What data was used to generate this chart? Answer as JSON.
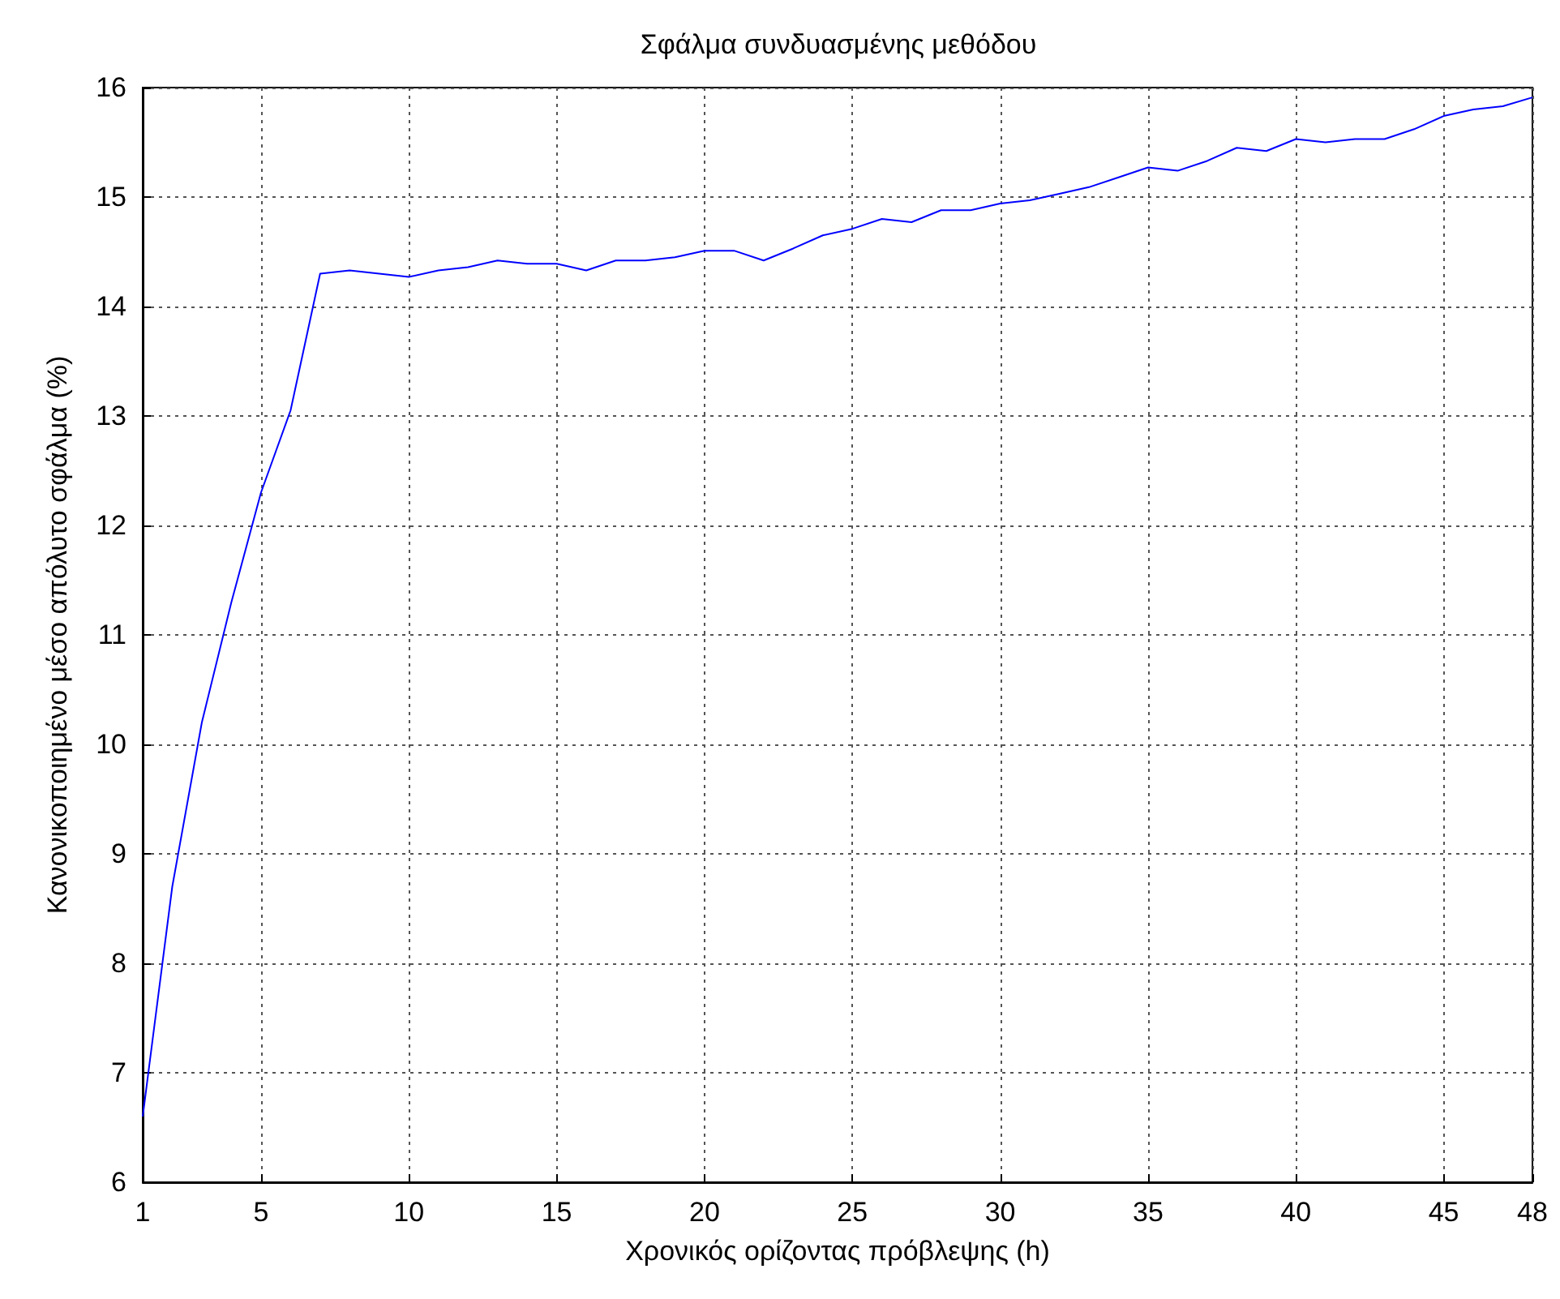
{
  "chart_data": {
    "type": "line",
    "title": "Σφάλμα συνδυασμένης μεθόδου",
    "xlabel": "Χρονικός ορίζοντας πρόβλεψης (h)",
    "ylabel": "Κανονικοποιημένο μέσο απόλυτο σφάλμα (%)",
    "x": [
      1,
      2,
      3,
      4,
      5,
      6,
      7,
      8,
      9,
      10,
      11,
      12,
      13,
      14,
      15,
      16,
      17,
      18,
      19,
      20,
      21,
      22,
      23,
      24,
      25,
      26,
      27,
      28,
      29,
      30,
      31,
      32,
      33,
      34,
      35,
      36,
      37,
      38,
      39,
      40,
      41,
      42,
      43,
      44,
      45,
      46,
      47,
      48
    ],
    "series": [
      {
        "color": "#0000ff",
        "values": [
          6.6,
          8.7,
          10.2,
          11.3,
          12.3,
          13.05,
          14.3,
          14.33,
          14.3,
          14.27,
          14.33,
          14.36,
          14.42,
          14.39,
          14.39,
          14.33,
          14.42,
          14.42,
          14.45,
          14.51,
          14.51,
          14.42,
          14.53,
          14.65,
          14.71,
          14.8,
          14.77,
          14.88,
          14.88,
          14.94,
          14.97,
          15.03,
          15.09,
          15.18,
          15.27,
          15.24,
          15.33,
          15.45,
          15.42,
          15.53,
          15.5,
          15.53,
          15.53,
          15.62,
          15.74,
          15.8,
          15.83,
          15.91
        ]
      }
    ],
    "xlim": [
      1,
      48
    ],
    "xticks": [
      1,
      5,
      10,
      15,
      20,
      25,
      30,
      35,
      40,
      45,
      48
    ],
    "ylim": [
      6,
      16
    ],
    "yticks": [
      6,
      7,
      8,
      9,
      10,
      11,
      12,
      13,
      14,
      15,
      16
    ],
    "grid": true,
    "marker": "none",
    "line_style": "solid"
  }
}
